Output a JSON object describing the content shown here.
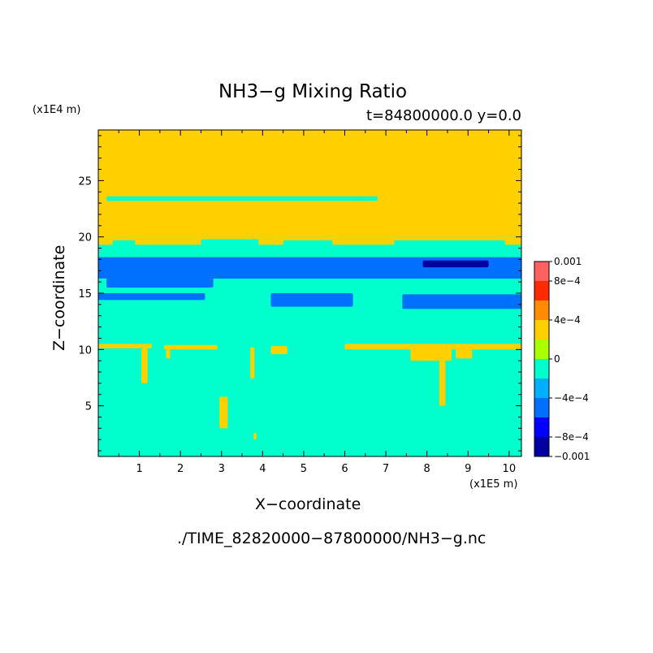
{
  "chart_data": {
    "type": "heatmap",
    "title": "NH3−g Mixing Ratio",
    "subtitle": "t=84800000.0 y=0.0",
    "xlabel": "X−coordinate",
    "ylabel": "Z−coordinate",
    "x_unit": "(x1E5 m)",
    "y_unit": "(x1E4 m)",
    "xlim": [
      0,
      10.3
    ],
    "ylim": [
      0.5,
      29.5
    ],
    "x_ticks": [
      "1",
      "2",
      "3",
      "4",
      "5",
      "6",
      "7",
      "8",
      "9",
      "10"
    ],
    "y_ticks": [
      "5",
      "10",
      "15",
      "20",
      "25"
    ],
    "colorbar": {
      "colors": [
        "#0000a0",
        "#0000ff",
        "#0070ff",
        "#00b0ff",
        "#00ffcc",
        "#aaff00",
        "#ffd000",
        "#ff8c00",
        "#ff2a00",
        "#ff6060"
      ],
      "labels": [
        "0.001",
        "8e−4",
        "4e−4",
        "0",
        "−4e−4",
        "−8e−4",
        "−0.001"
      ],
      "label_values": [
        0.001,
        0.0008,
        0.0004,
        0,
        -0.0004,
        -0.0008,
        -0.001
      ],
      "vmin": -0.001,
      "vmax": 0.001
    },
    "background_value": -0.0002,
    "regions": [
      {
        "value": 0.0002,
        "x": [
          0,
          10.3
        ],
        "z": [
          20.0,
          29.5
        ]
      },
      {
        "value": 0.0002,
        "x": [
          0,
          10.3
        ],
        "z": [
          19.3,
          20.0
        ]
      },
      {
        "value": -0.0002,
        "x": [
          0.35,
          0.9
        ],
        "z": [
          19.1,
          19.7
        ]
      },
      {
        "value": -0.0002,
        "x": [
          2.5,
          3.9
        ],
        "z": [
          19.2,
          19.8
        ]
      },
      {
        "value": -0.0002,
        "x": [
          4.5,
          5.7
        ],
        "z": [
          19.2,
          19.7
        ]
      },
      {
        "value": -0.0002,
        "x": [
          7.2,
          9.9
        ],
        "z": [
          19.1,
          19.7
        ]
      },
      {
        "value": -0.0002,
        "x": [
          0,
          10.3
        ],
        "z": [
          18.2,
          19.3
        ]
      },
      {
        "value": -0.0002,
        "x": [
          0.2,
          6.8
        ],
        "z": [
          23.2,
          23.6
        ]
      },
      {
        "value": -0.0006,
        "x": [
          0,
          10.3
        ],
        "z": [
          16.3,
          18.2
        ]
      },
      {
        "value": -0.0006,
        "x": [
          0.2,
          2.8
        ],
        "z": [
          15.5,
          16.4
        ]
      },
      {
        "value": -0.0006,
        "x": [
          0,
          2.6
        ],
        "z": [
          14.4,
          15.0
        ]
      },
      {
        "value": -0.0006,
        "x": [
          4.2,
          6.2
        ],
        "z": [
          13.8,
          15.0
        ]
      },
      {
        "value": -0.0006,
        "x": [
          7.4,
          10.3
        ],
        "z": [
          13.6,
          14.9
        ]
      },
      {
        "value": -0.0009,
        "x": [
          7.9,
          9.5
        ],
        "z": [
          17.3,
          17.9
        ]
      },
      {
        "value": 0.0002,
        "x": [
          0,
          1.3
        ],
        "z": [
          10.1,
          10.5
        ]
      },
      {
        "value": 0.0002,
        "x": [
          1.05,
          1.2
        ],
        "z": [
          7.0,
          10.1
        ]
      },
      {
        "value": 0.0002,
        "x": [
          1.6,
          2.9
        ],
        "z": [
          10.0,
          10.4
        ]
      },
      {
        "value": 0.0002,
        "x": [
          1.65,
          1.75
        ],
        "z": [
          9.2,
          10.0
        ]
      },
      {
        "value": 0.0002,
        "x": [
          3.7,
          3.8
        ],
        "z": [
          7.4,
          10.2
        ]
      },
      {
        "value": 0.0002,
        "x": [
          2.95,
          3.15
        ],
        "z": [
          3.0,
          5.8
        ]
      },
      {
        "value": 0.0002,
        "x": [
          3.78,
          3.85
        ],
        "z": [
          2.0,
          2.6
        ]
      },
      {
        "value": 0.0002,
        "x": [
          4.2,
          4.6
        ],
        "z": [
          9.6,
          10.3
        ]
      },
      {
        "value": 0.0002,
        "x": [
          6.0,
          10.3
        ],
        "z": [
          10.0,
          10.5
        ]
      },
      {
        "value": 0.0002,
        "x": [
          7.6,
          8.6
        ],
        "z": [
          9.0,
          10.1
        ]
      },
      {
        "value": 0.0002,
        "x": [
          8.3,
          8.45
        ],
        "z": [
          5.0,
          9.0
        ]
      },
      {
        "value": 0.0002,
        "x": [
          8.7,
          9.1
        ],
        "z": [
          9.2,
          10.0
        ]
      }
    ]
  },
  "file_path": "./TIME_82820000−87800000/NH3−g.nc"
}
